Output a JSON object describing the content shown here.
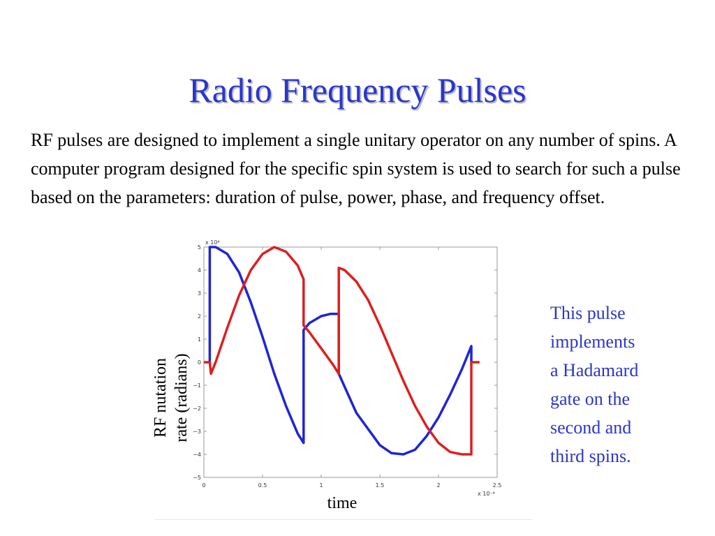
{
  "title": "Radio Frequency Pulses",
  "body_text": "RF pulses are designed to implement a single unitary operator on any number of spins. A computer program designed for the specific spin system is used to search for such a pulse based on the parameters: duration of pulse, power, phase, and frequency offset.",
  "side_note": [
    "This pulse",
    "implements",
    "a Hadamard",
    "gate on the",
    "second and",
    "third spins."
  ],
  "chart_data": {
    "type": "line",
    "xlabel": "time",
    "ylabel": [
      "RF nutation",
      "rate (radians)"
    ],
    "x_multiplier": "x 10⁻⁴",
    "y_multiplier": "x 10⁴",
    "xlim": [
      0,
      2.5
    ],
    "ylim": [
      -5,
      5
    ],
    "x_ticks": [
      "0",
      "0.5",
      "1",
      "1.5",
      "2",
      "2.5"
    ],
    "y_ticks": [
      "5",
      "4",
      "3",
      "2",
      "1",
      "0",
      "−1",
      "−2",
      "−3",
      "−4",
      "−5"
    ],
    "x_tick_values": [
      0,
      0.5,
      1,
      1.5,
      2,
      2.5
    ],
    "y_tick_values": [
      5,
      4,
      3,
      2,
      1,
      0,
      -1,
      -2,
      -3,
      -4,
      -5
    ],
    "grid": false,
    "series": [
      {
        "color": "#1f24d6",
        "points": [
          [
            0.05,
            0
          ],
          [
            0.05,
            5
          ],
          [
            0.1,
            5
          ],
          [
            0.2,
            4.7
          ],
          [
            0.3,
            3.9
          ],
          [
            0.4,
            2.6
          ],
          [
            0.5,
            1.1
          ],
          [
            0.6,
            -0.5
          ],
          [
            0.7,
            -1.9
          ],
          [
            0.8,
            -3.1
          ],
          [
            0.85,
            -3.5
          ],
          [
            0.85,
            1.4
          ],
          [
            0.9,
            1.7
          ],
          [
            1.0,
            2.0
          ],
          [
            1.08,
            2.1
          ],
          [
            1.15,
            2.1
          ],
          [
            1.15,
            -0.5
          ],
          [
            1.3,
            -2.2
          ],
          [
            1.5,
            -3.6
          ],
          [
            1.6,
            -3.95
          ],
          [
            1.7,
            -4.0
          ],
          [
            1.8,
            -3.8
          ],
          [
            1.9,
            -3.2
          ],
          [
            2.0,
            -2.4
          ],
          [
            2.1,
            -1.4
          ],
          [
            2.2,
            -0.3
          ],
          [
            2.28,
            0.7
          ],
          [
            2.28,
            0
          ]
        ]
      },
      {
        "color": "#dd1f1f",
        "points": [
          [
            0.0,
            0
          ],
          [
            0.05,
            0
          ],
          [
            0.06,
            -0.5
          ],
          [
            0.1,
            0
          ],
          [
            0.2,
            1.5
          ],
          [
            0.3,
            2.9
          ],
          [
            0.4,
            4.0
          ],
          [
            0.5,
            4.7
          ],
          [
            0.6,
            5.0
          ],
          [
            0.7,
            4.8
          ],
          [
            0.8,
            4.2
          ],
          [
            0.85,
            3.6
          ],
          [
            0.85,
            1.6
          ],
          [
            0.9,
            1.3
          ],
          [
            1.0,
            0.6
          ],
          [
            1.1,
            -0.1
          ],
          [
            1.15,
            -0.5
          ],
          [
            1.15,
            4.1
          ],
          [
            1.2,
            4.0
          ],
          [
            1.3,
            3.5
          ],
          [
            1.4,
            2.7
          ],
          [
            1.5,
            1.6
          ],
          [
            1.6,
            0.4
          ],
          [
            1.7,
            -0.8
          ],
          [
            1.8,
            -1.9
          ],
          [
            1.9,
            -2.8
          ],
          [
            2.0,
            -3.5
          ],
          [
            2.1,
            -3.9
          ],
          [
            2.2,
            -4.0
          ],
          [
            2.28,
            -4.0
          ],
          [
            2.28,
            0
          ],
          [
            2.35,
            0
          ]
        ]
      }
    ]
  }
}
